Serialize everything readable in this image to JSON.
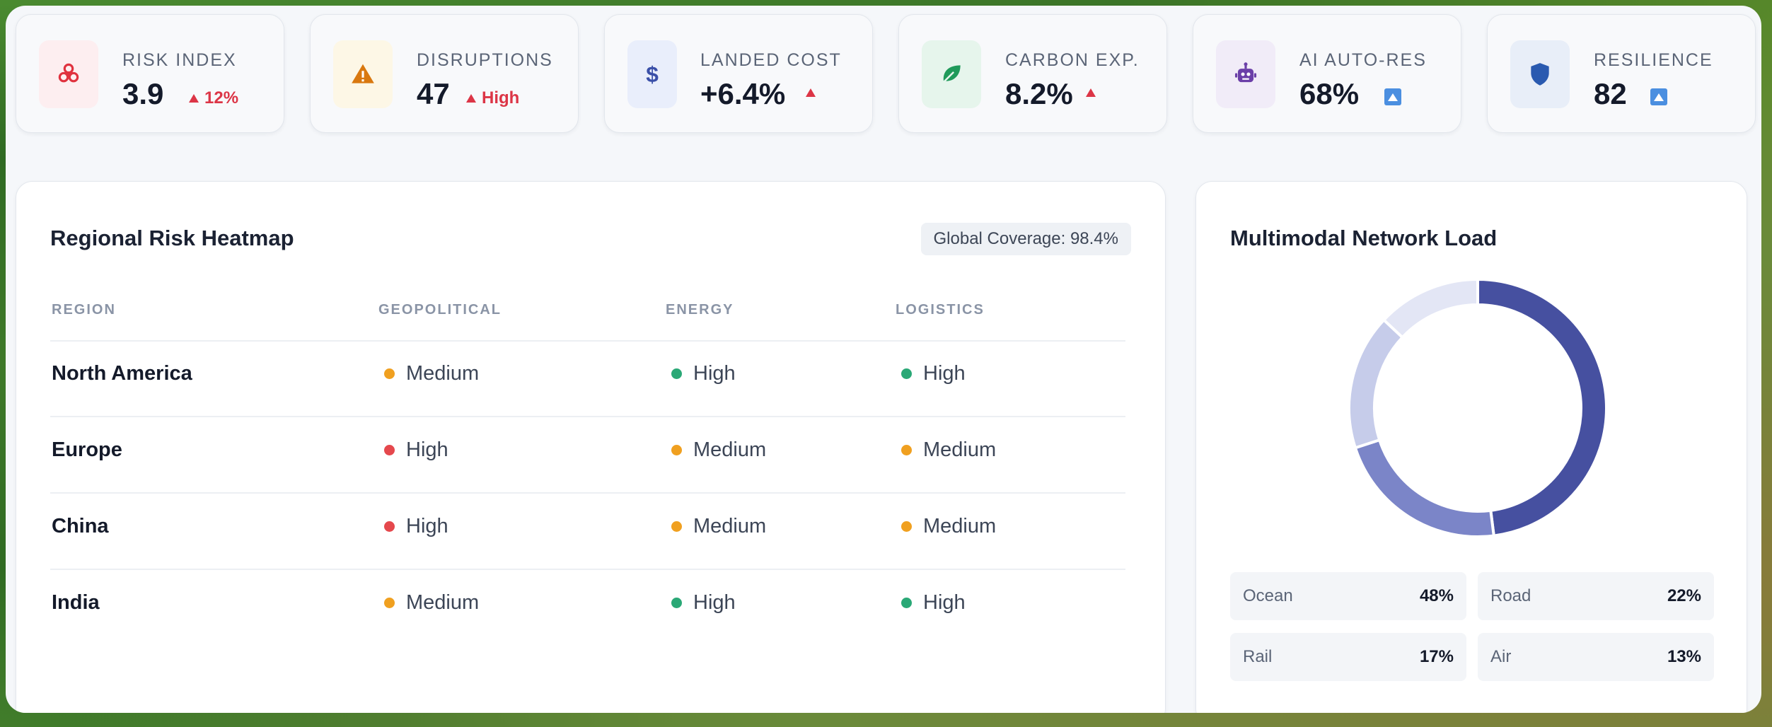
{
  "kpis": [
    {
      "label": "RISK INDEX",
      "value": "3.9",
      "trend": "12%",
      "icon": "biohazard-icon",
      "icon_color": "#e0323f",
      "icon_bg": "#fdeef0"
    },
    {
      "label": "DISRUPTIONS",
      "value": "47",
      "trend": "High",
      "icon": "warning-icon",
      "icon_color": "#d9780f",
      "icon_bg": "#fdf7e6"
    },
    {
      "label": "LANDED COST",
      "value": "+6.4%",
      "trend": "",
      "icon": "dollar-icon",
      "icon_color": "#3a4fa8",
      "icon_bg": "#e9eefb"
    },
    {
      "label": "CARBON EXP.",
      "value": "8.2%",
      "trend": "",
      "icon": "leaf-icon",
      "icon_color": "#1f9a5a",
      "icon_bg": "#e6f5ec"
    },
    {
      "label": "AI AUTO-RES",
      "value": "68%",
      "trend": "",
      "icon": "robot-icon",
      "icon_color": "#6b3fa8",
      "icon_bg": "#f1ecf8"
    },
    {
      "label": "RESILIENCE",
      "value": "82",
      "trend": "",
      "icon": "shield-icon",
      "icon_color": "#2a5ab0",
      "icon_bg": "#e8eef8"
    }
  ],
  "heatmap": {
    "title": "Regional Risk Heatmap",
    "coverage": "Global Coverage: 98.4%",
    "columns": [
      "REGION",
      "GEOPOLITICAL",
      "ENERGY",
      "LOGISTICS"
    ],
    "rows": [
      {
        "region": "North America",
        "geopolitical": "Medium",
        "energy": "High",
        "logistics": "High"
      },
      {
        "region": "Europe",
        "geopolitical": "High",
        "energy": "Medium",
        "logistics": "Medium"
      },
      {
        "region": "China",
        "geopolitical": "High",
        "energy": "Medium",
        "logistics": "Medium"
      },
      {
        "region": "India",
        "geopolitical": "Medium",
        "energy": "High",
        "logistics": "High"
      }
    ],
    "status_colors": {
      "geopolitical": {
        "High": "#e5484d",
        "Medium": "#f0a020"
      },
      "other": {
        "High": "#2aa876",
        "Medium": "#f0a020"
      }
    }
  },
  "network": {
    "title": "Multimodal Network Load",
    "segments": [
      {
        "name": "Ocean",
        "value": "48%",
        "pct": 48,
        "color": "#4650a0"
      },
      {
        "name": "Road",
        "value": "22%",
        "pct": 22,
        "color": "#7b85c8"
      },
      {
        "name": "Rail",
        "value": "17%",
        "pct": 17,
        "color": "#c6ccea"
      },
      {
        "name": "Air",
        "value": "13%",
        "pct": 13,
        "color": "#e3e6f5"
      }
    ]
  }
}
